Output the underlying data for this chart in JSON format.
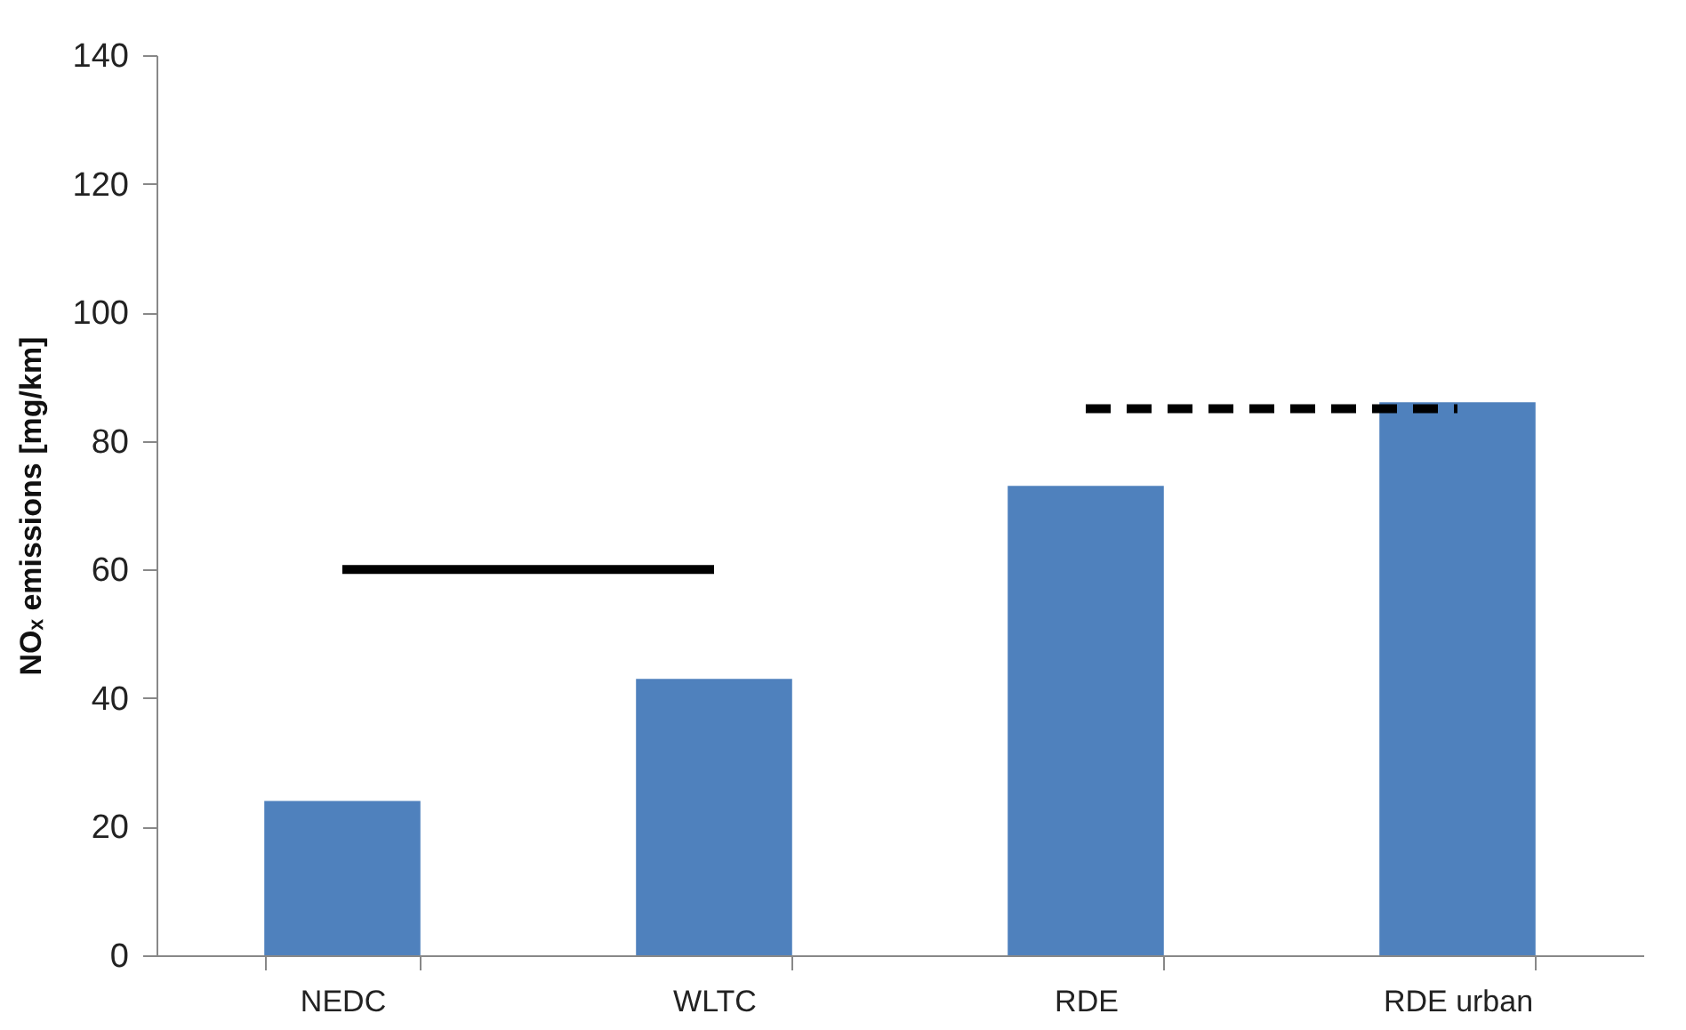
{
  "chart_data": {
    "type": "bar",
    "ylabel": "NOₓ emissions [mg/km]",
    "categories": [
      "NEDC",
      "WLTC",
      "RDE",
      "RDE urban"
    ],
    "series": [
      {
        "color": "#4f81bd",
        "values": [
          24,
          43,
          73,
          86
        ]
      },
      {
        "type": "line",
        "color": "#000000",
        "line_style": "solid",
        "values": [
          60,
          60,
          null,
          null
        ]
      },
      {
        "type": "line",
        "color": "#000000",
        "line_style": "dashed",
        "values": [
          null,
          null,
          85,
          85
        ]
      }
    ],
    "ylim": [
      0,
      140
    ],
    "yticks": [
      0,
      20,
      40,
      60,
      80,
      100,
      120,
      140
    ],
    "grid": false
  }
}
